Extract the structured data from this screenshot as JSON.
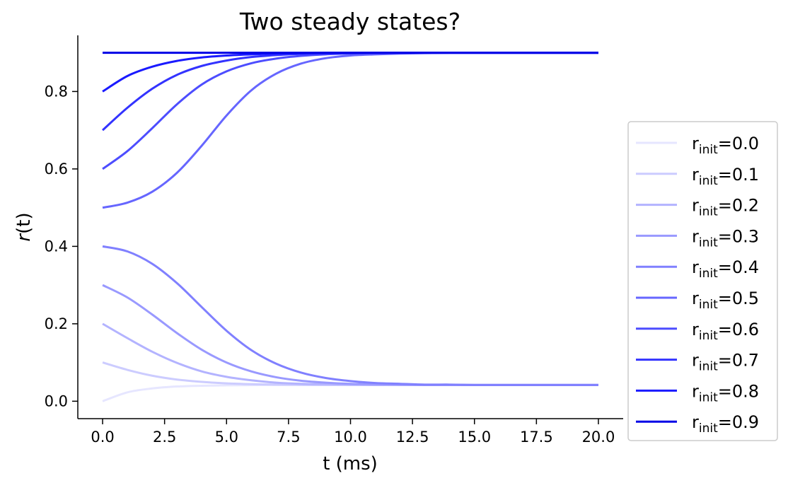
{
  "chart_data": {
    "type": "line",
    "title": "Two steady states?",
    "xlabel": "t (ms)",
    "ylabel_italic": "r",
    "ylabel_rest": "(t)",
    "xlim": [
      -1.0,
      21.0
    ],
    "ylim": [
      -0.045,
      0.945
    ],
    "xticks": [
      0.0,
      2.5,
      5.0,
      7.5,
      10.0,
      12.5,
      15.0,
      17.5,
      20.0
    ],
    "xtick_labels": [
      "0.0",
      "2.5",
      "5.0",
      "7.5",
      "10.0",
      "12.5",
      "15.0",
      "17.5",
      "20.0"
    ],
    "yticks": [
      0.0,
      0.2,
      0.4,
      0.6,
      0.8
    ],
    "ytick_labels": [
      "0.0",
      "0.2",
      "0.4",
      "0.6",
      "0.8"
    ],
    "grid": false,
    "legend_position": "right, outside the axes",
    "x_range": [
      0,
      20
    ],
    "series": [
      {
        "label_base": "r",
        "label_sub": "init",
        "label_value": "=0.0",
        "color": "#e6e6ff",
        "values": [
          0.0,
          0.023,
          0.033,
          0.038,
          0.04,
          0.041,
          0.0415,
          0.042,
          0.042,
          0.042,
          0.042,
          0.042,
          0.042,
          0.042,
          0.042,
          0.042,
          0.042,
          0.042,
          0.042,
          0.042,
          0.042
        ]
      },
      {
        "label_base": "r",
        "label_sub": "init",
        "label_value": "=0.1",
        "color": "#ccccff",
        "values": [
          0.1,
          0.081,
          0.066,
          0.056,
          0.05,
          0.046,
          0.044,
          0.043,
          0.0425,
          0.042,
          0.042,
          0.042,
          0.042,
          0.042,
          0.042,
          0.042,
          0.042,
          0.042,
          0.042,
          0.042,
          0.042
        ]
      },
      {
        "label_base": "r",
        "label_sub": "init",
        "label_value": "=0.2",
        "color": "#b3b3ff",
        "values": [
          0.2,
          0.163,
          0.128,
          0.099,
          0.077,
          0.063,
          0.054,
          0.048,
          0.045,
          0.044,
          0.043,
          0.042,
          0.042,
          0.042,
          0.042,
          0.042,
          0.042,
          0.042,
          0.042,
          0.042,
          0.042
        ]
      },
      {
        "label_base": "r",
        "label_sub": "init",
        "label_value": "=0.3",
        "color": "#9999ff",
        "values": [
          0.3,
          0.268,
          0.224,
          0.176,
          0.133,
          0.1,
          0.077,
          0.062,
          0.053,
          0.048,
          0.045,
          0.044,
          0.043,
          0.042,
          0.042,
          0.042,
          0.042,
          0.042,
          0.042,
          0.042,
          0.042
        ]
      },
      {
        "label_base": "r",
        "label_sub": "init",
        "label_value": "=0.4",
        "color": "#8080ff",
        "values": [
          0.4,
          0.387,
          0.355,
          0.305,
          0.243,
          0.182,
          0.132,
          0.097,
          0.074,
          0.06,
          0.052,
          0.047,
          0.045,
          0.043,
          0.043,
          0.042,
          0.042,
          0.042,
          0.042,
          0.042,
          0.042
        ]
      },
      {
        "label_base": "r",
        "label_sub": "init",
        "label_value": "=0.5",
        "color": "#6666ff",
        "values": [
          0.5,
          0.513,
          0.541,
          0.59,
          0.66,
          0.738,
          0.803,
          0.846,
          0.872,
          0.886,
          0.893,
          0.896,
          0.898,
          0.899,
          0.9,
          0.9,
          0.9,
          0.9,
          0.9,
          0.9,
          0.9
        ]
      },
      {
        "label_base": "r",
        "label_sub": "init",
        "label_value": "=0.6",
        "color": "#4d4dff",
        "values": [
          0.6,
          0.646,
          0.705,
          0.767,
          0.818,
          0.852,
          0.873,
          0.885,
          0.892,
          0.896,
          0.898,
          0.899,
          0.9,
          0.9,
          0.9,
          0.9,
          0.9,
          0.9,
          0.9,
          0.9,
          0.9
        ]
      },
      {
        "label_base": "r",
        "label_sub": "init",
        "label_value": "=0.7",
        "color": "#3333ff",
        "values": [
          0.7,
          0.758,
          0.807,
          0.843,
          0.866,
          0.88,
          0.889,
          0.894,
          0.897,
          0.898,
          0.899,
          0.9,
          0.9,
          0.9,
          0.9,
          0.9,
          0.9,
          0.9,
          0.9,
          0.9,
          0.9
        ]
      },
      {
        "label_base": "r",
        "label_sub": "init",
        "label_value": "=0.8",
        "color": "#1a1aff",
        "values": [
          0.8,
          0.84,
          0.864,
          0.879,
          0.888,
          0.893,
          0.896,
          0.898,
          0.899,
          0.9,
          0.9,
          0.9,
          0.9,
          0.9,
          0.9,
          0.9,
          0.9,
          0.9,
          0.9,
          0.9,
          0.9
        ]
      },
      {
        "label_base": "r",
        "label_sub": "init",
        "label_value": "=0.9",
        "color": "#0000e6",
        "values": [
          0.9,
          0.9,
          0.9,
          0.9,
          0.9,
          0.9,
          0.9,
          0.9,
          0.9,
          0.9,
          0.9,
          0.9,
          0.9,
          0.9,
          0.9,
          0.9,
          0.9,
          0.9,
          0.9,
          0.9,
          0.9
        ]
      }
    ]
  }
}
